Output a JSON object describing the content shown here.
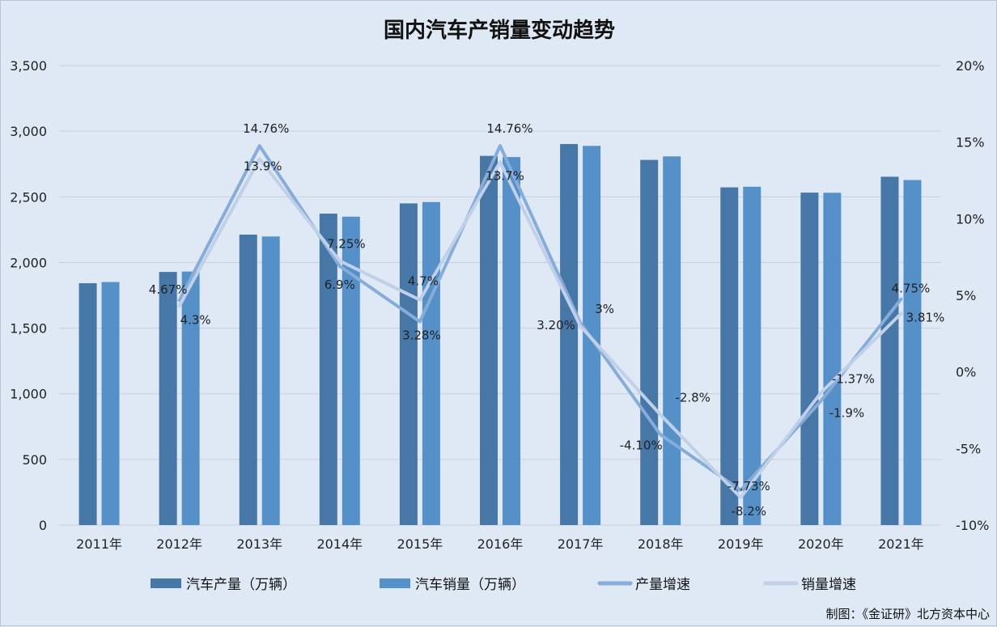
{
  "chart_data": {
    "type": "bar",
    "title": "国内汽车产销量变动趋势",
    "categories": [
      "2011年",
      "2012年",
      "2013年",
      "2014年",
      "2015年",
      "2016年",
      "2017年",
      "2018年",
      "2019年",
      "2020年",
      "2021年"
    ],
    "series": [
      {
        "name": "汽车产量（万辆）",
        "type": "bar",
        "axis": "left",
        "color": "#4777a7",
        "values": [
          1842,
          1928,
          2212,
          2372,
          2450,
          2812,
          2902,
          2781,
          2572,
          2532,
          2653
        ]
      },
      {
        "name": "汽车销量（万辆）",
        "type": "bar",
        "axis": "left",
        "color": "#5690c8",
        "values": [
          1851,
          1931,
          2198,
          2349,
          2460,
          2803,
          2888,
          2808,
          2577,
          2531,
          2628
        ]
      },
      {
        "name": "产量增速",
        "type": "line",
        "axis": "right",
        "color": "#86acd9",
        "values": [
          null,
          4.67,
          14.76,
          6.9,
          3.28,
          14.76,
          3.2,
          -4.1,
          -7.73,
          -1.9,
          4.75
        ],
        "labels": [
          "",
          "4.67%",
          "14.76%",
          "6.9%",
          "3.28%",
          "14.76%",
          "3.20%",
          "-4.10%",
          "-7.73%",
          "-1.9%",
          "4.75%"
        ]
      },
      {
        "name": "销量增速",
        "type": "line",
        "axis": "right",
        "color": "#bfd0e8",
        "values": [
          null,
          4.3,
          13.9,
          7.25,
          4.7,
          13.7,
          3,
          -2.8,
          -8.2,
          -1.37,
          3.81
        ],
        "labels": [
          "",
          "4.3%",
          "13.9%",
          "7.25%",
          "4.7%",
          "13.7%",
          "3%",
          "-2.8%",
          "-8.2%",
          "-1.37%",
          "3.81%"
        ]
      }
    ],
    "ylim_left": [
      0,
      3500
    ],
    "yticks_left": [
      "0",
      "500",
      "1,000",
      "1,500",
      "2,000",
      "2,500",
      "3,000",
      "3,500"
    ],
    "ylim_right": [
      -10,
      20
    ],
    "yticks_right": [
      "-10%",
      "-5%",
      "0%",
      "5%",
      "10%",
      "15%",
      "20%"
    ],
    "grid": true,
    "legend_position": "bottom"
  },
  "source": "制图：《金证研》北方资本中心"
}
